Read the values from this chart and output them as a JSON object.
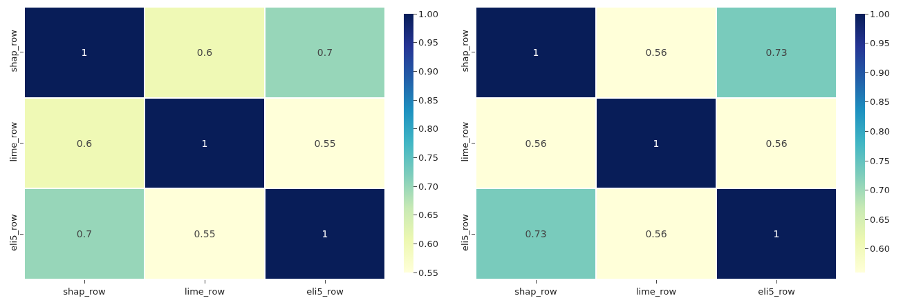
{
  "chart_data": [
    {
      "type": "heatmap",
      "categories": [
        "shap_row",
        "lime_row",
        "eli5_row"
      ],
      "y_categories": [
        "shap_row",
        "lime_row",
        "eli5_row"
      ],
      "cells": [
        [
          1,
          0.6,
          0.7
        ],
        [
          0.6,
          1,
          0.55
        ],
        [
          0.7,
          0.55,
          1
        ]
      ],
      "clim": [
        0.55,
        1.0
      ],
      "cticks": [
        0.55,
        {
          "value": 0.6,
          "label": "0.60"
        },
        0.65,
        {
          "value": 0.7,
          "label": "0.70"
        },
        0.75,
        {
          "value": 0.8,
          "label": "0.80"
        },
        0.85,
        {
          "value": 0.9,
          "label": "0.90"
        },
        0.95,
        {
          "value": 1.0,
          "label": "1.00"
        }
      ],
      "data_labels": true
    },
    {
      "type": "heatmap",
      "categories": [
        "shap_row",
        "lime_row",
        "eli5_row"
      ],
      "y_categories": [
        "shap_row",
        "lime_row",
        "eli5_row"
      ],
      "cells": [
        [
          1,
          0.56,
          0.73
        ],
        [
          0.56,
          1,
          0.56
        ],
        [
          0.73,
          0.56,
          1
        ]
      ],
      "clim": [
        0.56,
        1.0
      ],
      "cticks": [
        {
          "value": 0.6,
          "label": "0.60"
        },
        0.65,
        {
          "value": 0.7,
          "label": "0.70"
        },
        0.75,
        {
          "value": 0.8,
          "label": "0.80"
        },
        0.85,
        {
          "value": 0.9,
          "label": "0.90"
        },
        0.95,
        {
          "value": 1.0,
          "label": "1.00"
        }
      ],
      "data_labels": true
    }
  ]
}
